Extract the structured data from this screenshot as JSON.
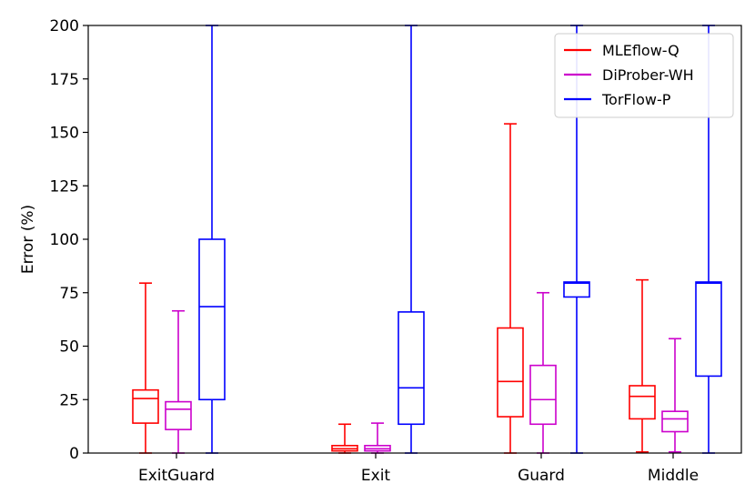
{
  "chart_data": {
    "type": "boxplot",
    "ylabel": "Error (%)",
    "xlabel": "",
    "ylim": [
      0,
      200
    ],
    "yticks": [
      0,
      25,
      50,
      75,
      100,
      125,
      150,
      175,
      200
    ],
    "categories": [
      "ExitGuard",
      "Exit",
      "Guard",
      "Middle"
    ],
    "legend_position": "top-right",
    "series": [
      {
        "name": "MLEflow-Q",
        "color": "#ff0000",
        "boxes": [
          {
            "whisker_low": 0,
            "q1": 14,
            "median": 25.5,
            "q3": 29.5,
            "whisker_high": 79.5
          },
          {
            "whisker_low": 0,
            "q1": 1,
            "median": 2,
            "q3": 3.5,
            "whisker_high": 13.5
          },
          {
            "whisker_low": 0,
            "q1": 17,
            "median": 33.5,
            "q3": 58.5,
            "whisker_high": 154
          },
          {
            "whisker_low": 0.5,
            "q1": 16,
            "median": 26.5,
            "q3": 31.5,
            "whisker_high": 81
          }
        ]
      },
      {
        "name": "DiProber-WH",
        "color": "#cc00cc",
        "boxes": [
          {
            "whisker_low": 0,
            "q1": 11,
            "median": 20.5,
            "q3": 24,
            "whisker_high": 66.5
          },
          {
            "whisker_low": 0,
            "q1": 1,
            "median": 2,
            "q3": 3.5,
            "whisker_high": 14
          },
          {
            "whisker_low": 0,
            "q1": 13.5,
            "median": 25,
            "q3": 41,
            "whisker_high": 75
          },
          {
            "whisker_low": 0.5,
            "q1": 10,
            "median": 16,
            "q3": 19.5,
            "whisker_high": 53.5
          }
        ]
      },
      {
        "name": "TorFlow-P",
        "color": "#0000ff",
        "boxes": [
          {
            "whisker_low": 0,
            "q1": 25,
            "median": 68.5,
            "q3": 100,
            "whisker_high": 200
          },
          {
            "whisker_low": 0,
            "q1": 13.5,
            "median": 30.5,
            "q3": 66,
            "whisker_high": 200
          },
          {
            "whisker_low": 0,
            "q1": 73,
            "median": 79.5,
            "q3": 80,
            "whisker_high": 200
          },
          {
            "whisker_low": 0,
            "q1": 36,
            "median": 79.5,
            "q3": 80,
            "whisker_high": 200
          }
        ]
      }
    ]
  }
}
